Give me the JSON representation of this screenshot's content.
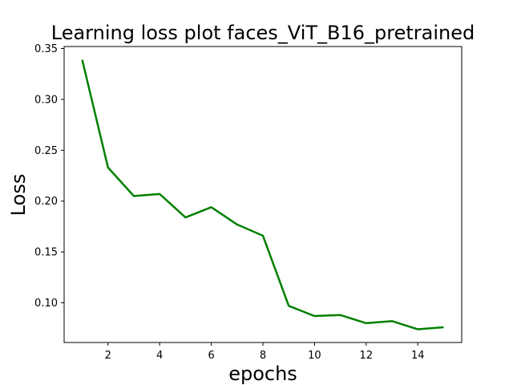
{
  "chart_data": {
    "type": "line",
    "title": "Learning loss plot faces_ViT_B16_pretrained",
    "xlabel": "epochs",
    "ylabel": "Loss",
    "x": [
      1,
      2,
      3,
      4,
      5,
      6,
      7,
      8,
      9,
      10,
      11,
      12,
      13,
      14,
      15
    ],
    "series": [
      {
        "name": "",
        "color": "#008000",
        "values": [
          0.339,
          0.233,
          0.205,
          0.207,
          0.184,
          0.194,
          0.177,
          0.166,
          0.097,
          0.087,
          0.088,
          0.08,
          0.082,
          0.074,
          0.076
        ]
      }
    ],
    "xlim": [
      0.3,
      15.7
    ],
    "ylim": [
      0.061,
      0.352
    ],
    "xticks": [
      2,
      4,
      6,
      8,
      10,
      12,
      14
    ],
    "xtick_labels": [
      "2",
      "4",
      "6",
      "8",
      "10",
      "12",
      "14"
    ],
    "yticks": [
      0.1,
      0.15,
      0.2,
      0.25,
      0.3,
      0.35
    ],
    "ytick_labels": [
      "0.10",
      "0.15",
      "0.20",
      "0.25",
      "0.30",
      "0.35"
    ],
    "grid": false,
    "legend": "none"
  }
}
